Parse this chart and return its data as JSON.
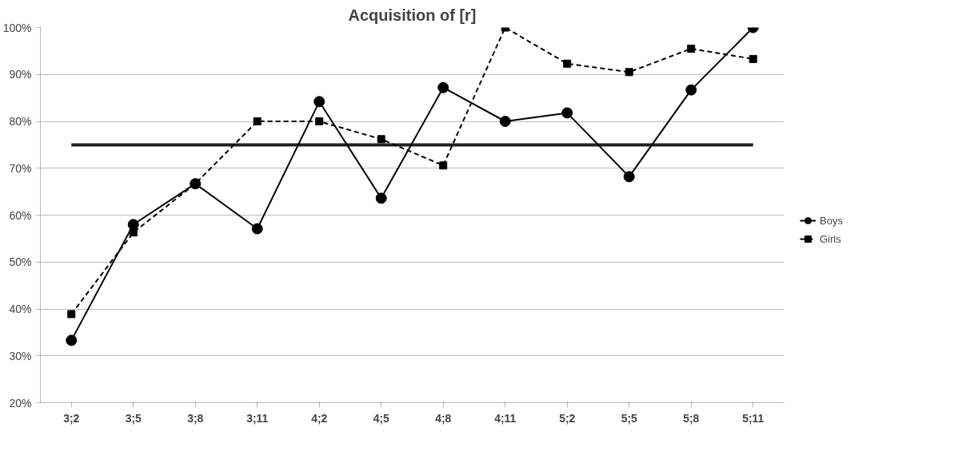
{
  "chart_data": {
    "type": "line",
    "title": "Acquisition of [r]",
    "categories": [
      "3;2",
      "3;5",
      "3;8",
      "3;11",
      "4;2",
      "4;5",
      "4;8",
      "4;11",
      "5;2",
      "5;5",
      "5;8",
      "5;11"
    ],
    "series": [
      {
        "name": "Boys",
        "color": "#000000",
        "marker": "circle",
        "line_style": "solid",
        "values": [
          33.3,
          58,
          66.7,
          57.1,
          84.2,
          63.6,
          87.2,
          80,
          81.8,
          68.2,
          86.7,
          100
        ]
      },
      {
        "name": "Girls",
        "color": "#000000",
        "marker": "square",
        "line_style": "dashed",
        "values": [
          38.9,
          56.3,
          66.7,
          80,
          80,
          76.2,
          70.6,
          100,
          92.3,
          90.5,
          95.5,
          93.3
        ]
      }
    ],
    "ylim": [
      20,
      100
    ],
    "yticks": [
      {
        "value": 20,
        "label": "20%"
      },
      {
        "value": 30,
        "label": "30%"
      },
      {
        "value": 40,
        "label": "40%"
      },
      {
        "value": 50,
        "label": "50%"
      },
      {
        "value": 60,
        "label": "60%"
      },
      {
        "value": 70,
        "label": "70%"
      },
      {
        "value": 80,
        "label": "80%"
      },
      {
        "value": 90,
        "label": "90%"
      },
      {
        "value": 100,
        "label": "100%"
      }
    ],
    "ref_lines": [
      {
        "axis": "y",
        "value": 75,
        "color": "#222222"
      }
    ],
    "grid": "y",
    "legend": "right"
  }
}
